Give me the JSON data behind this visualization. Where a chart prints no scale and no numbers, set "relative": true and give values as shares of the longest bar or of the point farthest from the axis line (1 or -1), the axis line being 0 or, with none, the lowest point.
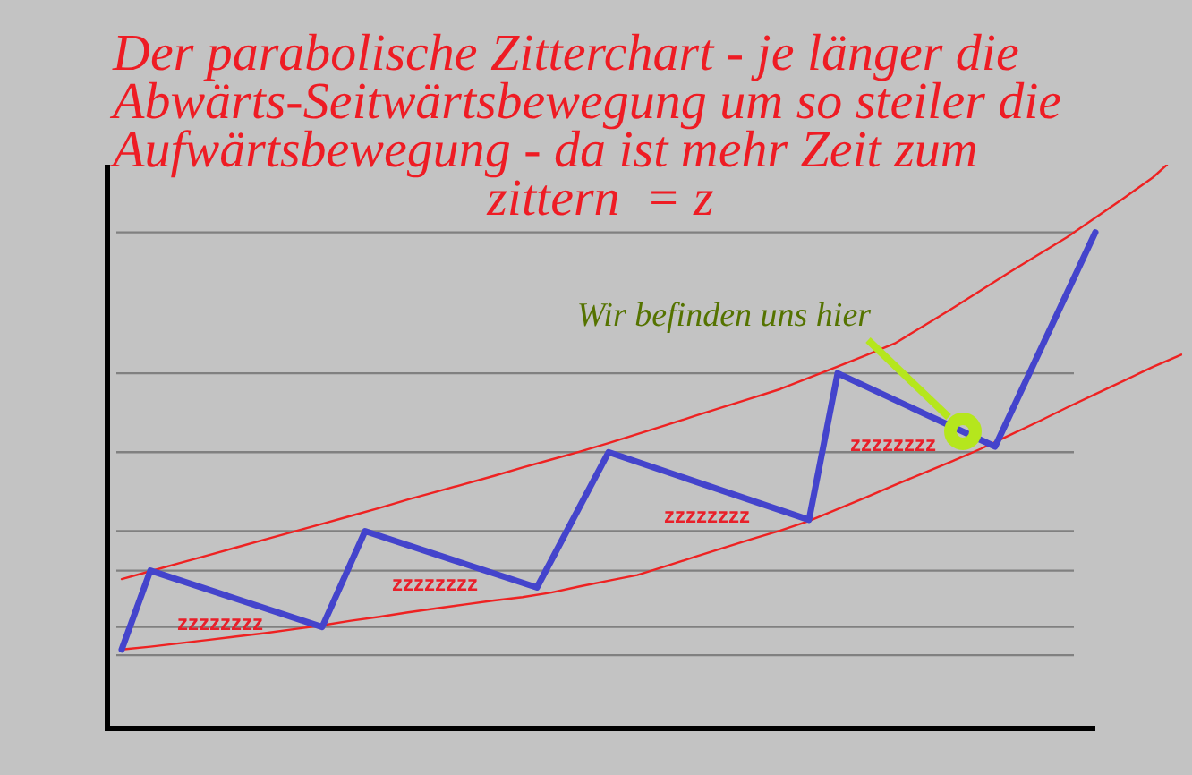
{
  "chart_data": {
    "type": "line",
    "title": "Der parabolische Zitterchart - je länger die Abwärts-Seitwärtsbewegung um so steiler die Aufwärtsbewegung - da ist mehr Zeit zum zittern  = z",
    "annotations": [
      "zzzzzzzz",
      "zzzzzzzz",
      "zzzzzzzz",
      "zzzzzzzz",
      "Wir befinden uns hier"
    ],
    "relative": true,
    "marker": "none",
    "categories": [
      null,
      null,
      null,
      null,
      null,
      null,
      null,
      null,
      null,
      null,
      null,
      null,
      null,
      null,
      null,
      null,
      null,
      null,
      null,
      null,
      null,
      null,
      null,
      null,
      null,
      null,
      null,
      null,
      null,
      null,
      null,
      null,
      null,
      null,
      null,
      null,
      null,
      null,
      null,
      null,
      null,
      null,
      null,
      null,
      null,
      null,
      null,
      null,
      null,
      null,
      null,
      null,
      null,
      null,
      null,
      null,
      null,
      null,
      null,
      null,
      null,
      null,
      null,
      null,
      null,
      null,
      null,
      null,
      null,
      null,
      null,
      null,
      null,
      null,
      null,
      null
    ],
    "series": [
      {
        "color": "#4444cc",
        "values": [
          null,
          0.14,
          null,
          0.28,
          null,
          null,
          null,
          null,
          null,
          null,
          null,
          null,
          null,
          null,
          null,
          0.18,
          null,
          null,
          0.35,
          null,
          null,
          null,
          null,
          null,
          null,
          null,
          null,
          null,
          null,
          null,
          0.25,
          null,
          null,
          null,
          null,
          0.49,
          null,
          null,
          null,
          null,
          null,
          null,
          null,
          null,
          null,
          null,
          null,
          null,
          null,
          0.37,
          null,
          0.63,
          null,
          null,
          null,
          null,
          null,
          null,
          null,
          null,
          null,
          null,
          0.5,
          null,
          null,
          null,
          null,
          null,
          null,
          0.88,
          null,
          null,
          null,
          null,
          null,
          null
        ]
      },
      {
        "color": "#ee2222",
        "values": [
          null,
          0.265,
          null,
          0.279,
          null,
          0.293,
          null,
          0.307,
          null,
          0.321,
          null,
          0.335,
          null,
          0.349,
          null,
          0.363,
          null,
          0.377,
          null,
          0.391,
          null,
          0.406,
          null,
          0.42,
          null,
          0.434,
          null,
          0.448,
          null,
          0.463,
          null,
          0.477,
          null,
          0.491,
          null,
          0.506,
          null,
          0.522,
          null,
          0.538,
          null,
          0.554,
          null,
          0.57,
          null,
          0.586,
          null,
          0.602,
          null,
          0.622,
          null,
          0.642,
          null,
          0.662,
          null,
          0.683,
          null,
          0.714,
          null,
          0.745,
          null,
          0.777,
          null,
          0.809,
          null,
          0.84,
          null,
          0.871,
          null,
          0.906,
          null,
          0.941,
          null,
          0.977,
          1,
          null
        ]
      },
      {
        "color": "#ee2222",
        "values": [
          null,
          0.14,
          null,
          0.145,
          null,
          0.151,
          null,
          0.157,
          null,
          0.163,
          null,
          0.169,
          null,
          0.176,
          null,
          0.183,
          null,
          0.191,
          null,
          0.198,
          null,
          0.206,
          null,
          0.213,
          null,
          0.22,
          null,
          0.227,
          null,
          0.233,
          null,
          0.241,
          null,
          0.252,
          null,
          0.262,
          null,
          0.272,
          null,
          0.288,
          null,
          0.304,
          null,
          0.32,
          null,
          0.336,
          null,
          0.351,
          null,
          0.368,
          null,
          0.389,
          null,
          0.41,
          null,
          0.432,
          null,
          0.453,
          null,
          0.474,
          null,
          0.496,
          null,
          0.52,
          null,
          0.544,
          null,
          0.569,
          null,
          0.593,
          null,
          0.617,
          null,
          0.641,
          null,
          0.663
        ]
      }
    ],
    "ref_lines": [
      {
        "axis": "y",
        "value": 0.88,
        "color": "#808080"
      },
      {
        "axis": "y",
        "value": 0.63,
        "color": "#808080"
      },
      {
        "axis": "y",
        "value": 0.49,
        "color": "#808080"
      },
      {
        "axis": "y",
        "value": 0.35,
        "color": "#808080"
      },
      {
        "axis": "y",
        "value": 0.28,
        "color": "#808080"
      },
      {
        "axis": "y",
        "value": 0.18,
        "color": "#808080"
      },
      {
        "axis": "y",
        "value": 0.13,
        "color": "#808080"
      }
    ]
  }
}
